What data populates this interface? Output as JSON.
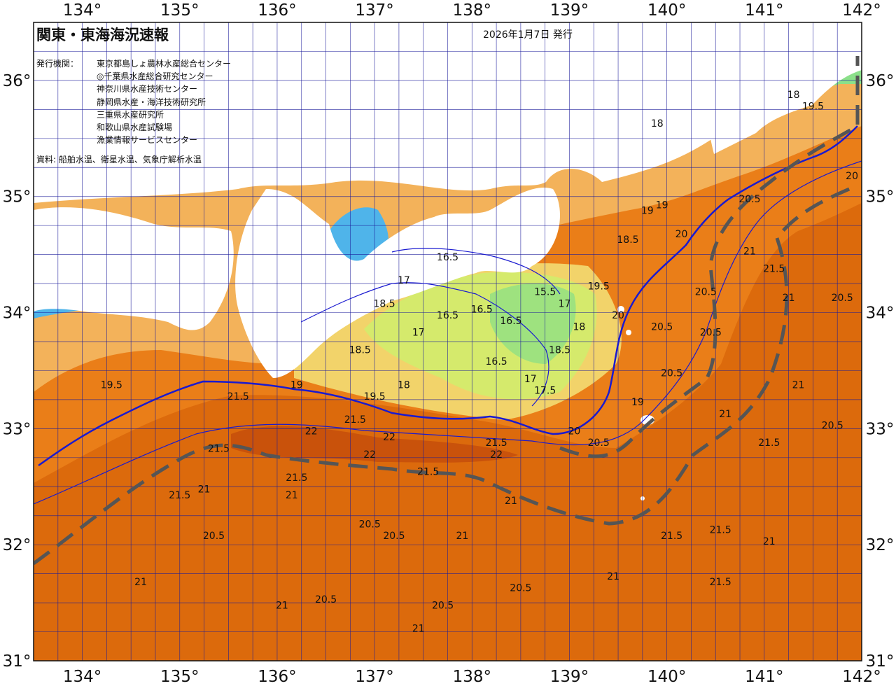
{
  "title": "関東・東海海況速報",
  "issue_date": "2026年1月7日 発行",
  "issuers_label": "発行機関：",
  "issuers": [
    "東京都島しょ農林水産総合センター",
    "◎千葉県水産総合研究センター",
    "神奈川県水産技術センター",
    "静岡県水産・海洋技術研究所",
    "三重県水産研究所",
    "和歌山県水産試験場",
    "漁業情報サービスセンター"
  ],
  "source": "資料: 船舶水温、衛星水温、気象庁解析水温",
  "longitude_labels": [
    "134°",
    "135°",
    "136°",
    "137°",
    "138°",
    "139°",
    "140°",
    "141°",
    "142°"
  ],
  "latitude_labels": [
    "36°",
    "35°",
    "34°",
    "33°",
    "32°",
    "31°"
  ],
  "extent": {
    "lon_min": 133.5,
    "lon_max": 142.0,
    "lat_min": 31.0,
    "lat_max": 36.5
  },
  "colors": {
    "land": "#ffffff",
    "sst_15": "#3fa7e8",
    "sst_16": "#8be08a",
    "sst_17": "#cfe868",
    "sst_18": "#f2d36a",
    "sst_19": "#f2a848",
    "sst_20": "#ef8a1e",
    "sst_21": "#e06a0a",
    "sst_22": "#c8500a",
    "isotherm": "#1a1ad0",
    "kuroshio_axis": "#555555",
    "grid": "#1a1a9a"
  },
  "contour_labels": [
    {
      "text": "16.5",
      "lon": 137.75,
      "lat": 34.45
    },
    {
      "text": "16.5",
      "lon": 137.75,
      "lat": 33.95
    },
    {
      "text": "16.5",
      "lon": 138.1,
      "lat": 34.0
    },
    {
      "text": "16.5",
      "lon": 138.4,
      "lat": 33.9
    },
    {
      "text": "16.5",
      "lon": 138.25,
      "lat": 33.55
    },
    {
      "text": "15.5",
      "lon": 138.75,
      "lat": 34.15
    },
    {
      "text": "17",
      "lon": 138.95,
      "lat": 34.05
    },
    {
      "text": "17",
      "lon": 137.3,
      "lat": 34.25
    },
    {
      "text": "17",
      "lon": 137.45,
      "lat": 33.8
    },
    {
      "text": "17",
      "lon": 138.6,
      "lat": 33.4
    },
    {
      "text": "17.5",
      "lon": 138.75,
      "lat": 33.3
    },
    {
      "text": "18",
      "lon": 137.3,
      "lat": 33.35
    },
    {
      "text": "18",
      "lon": 139.1,
      "lat": 33.85
    },
    {
      "text": "18",
      "lon": 139.9,
      "lat": 35.6
    },
    {
      "text": "18",
      "lon": 141.3,
      "lat": 35.85
    },
    {
      "text": "18.5",
      "lon": 136.85,
      "lat": 33.65
    },
    {
      "text": "18.5",
      "lon": 137.1,
      "lat": 34.05
    },
    {
      "text": "18.5",
      "lon": 138.9,
      "lat": 33.65
    },
    {
      "text": "18.5",
      "lon": 139.6,
      "lat": 34.6
    },
    {
      "text": "19",
      "lon": 136.2,
      "lat": 33.35
    },
    {
      "text": "19",
      "lon": 139.7,
      "lat": 33.2
    },
    {
      "text": "19",
      "lon": 139.8,
      "lat": 34.85
    },
    {
      "text": "19",
      "lon": 139.95,
      "lat": 34.9
    },
    {
      "text": "19.5",
      "lon": 137.0,
      "lat": 33.25
    },
    {
      "text": "19.5",
      "lon": 139.3,
      "lat": 34.2
    },
    {
      "text": "19.5",
      "lon": 134.3,
      "lat": 33.35
    },
    {
      "text": "19.5",
      "lon": 141.5,
      "lat": 35.75
    },
    {
      "text": "20",
      "lon": 139.5,
      "lat": 33.95
    },
    {
      "text": "20",
      "lon": 140.15,
      "lat": 34.65
    },
    {
      "text": "20",
      "lon": 139.05,
      "lat": 32.95
    },
    {
      "text": "20",
      "lon": 141.9,
      "lat": 35.15
    },
    {
      "text": "20.5",
      "lon": 139.95,
      "lat": 33.85
    },
    {
      "text": "20.5",
      "lon": 140.45,
      "lat": 33.8
    },
    {
      "text": "20.5",
      "lon": 140.05,
      "lat": 33.45
    },
    {
      "text": "20.5",
      "lon": 140.4,
      "lat": 34.15
    },
    {
      "text": "20.5",
      "lon": 139.3,
      "lat": 32.85
    },
    {
      "text": "20.5",
      "lon": 140.85,
      "lat": 34.95
    },
    {
      "text": "20.5",
      "lon": 141.7,
      "lat": 33.0
    },
    {
      "text": "20.5",
      "lon": 141.8,
      "lat": 34.1
    },
    {
      "text": "20.5",
      "lon": 136.95,
      "lat": 32.15
    },
    {
      "text": "20.5",
      "lon": 137.2,
      "lat": 32.05
    },
    {
      "text": "20.5",
      "lon": 135.35,
      "lat": 32.05
    },
    {
      "text": "20.5",
      "lon": 138.5,
      "lat": 31.6
    },
    {
      "text": "20.5",
      "lon": 136.5,
      "lat": 31.5
    },
    {
      "text": "20.5",
      "lon": 137.7,
      "lat": 31.45
    },
    {
      "text": "21",
      "lon": 134.6,
      "lat": 31.65
    },
    {
      "text": "21",
      "lon": 135.25,
      "lat": 32.45
    },
    {
      "text": "21",
      "lon": 136.15,
      "lat": 32.4
    },
    {
      "text": "21",
      "lon": 137.9,
      "lat": 32.05
    },
    {
      "text": "21",
      "lon": 138.4,
      "lat": 32.35
    },
    {
      "text": "21",
      "lon": 139.45,
      "lat": 31.7
    },
    {
      "text": "21",
      "lon": 140.6,
      "lat": 33.1
    },
    {
      "text": "21",
      "lon": 141.05,
      "lat": 32.0
    },
    {
      "text": "21",
      "lon": 141.35,
      "lat": 33.35
    },
    {
      "text": "21",
      "lon": 140.85,
      "lat": 34.5
    },
    {
      "text": "21",
      "lon": 141.25,
      "lat": 34.1
    },
    {
      "text": "21",
      "lon": 136.05,
      "lat": 31.45
    },
    {
      "text": "21",
      "lon": 137.45,
      "lat": 31.25
    },
    {
      "text": "21.5",
      "lon": 135.6,
      "lat": 33.25
    },
    {
      "text": "21.5",
      "lon": 136.8,
      "lat": 33.05
    },
    {
      "text": "21.5",
      "lon": 135.4,
      "lat": 32.8
    },
    {
      "text": "21.5",
      "lon": 136.2,
      "lat": 32.55
    },
    {
      "text": "21.5",
      "lon": 137.55,
      "lat": 32.6
    },
    {
      "text": "21.5",
      "lon": 138.25,
      "lat": 32.85
    },
    {
      "text": "21.5",
      "lon": 140.05,
      "lat": 32.05
    },
    {
      "text": "21.5",
      "lon": 140.55,
      "lat": 32.1
    },
    {
      "text": "21.5",
      "lon": 141.05,
      "lat": 32.85
    },
    {
      "text": "21.5",
      "lon": 141.1,
      "lat": 34.35
    },
    {
      "text": "21.5",
      "lon": 140.55,
      "lat": 31.65
    },
    {
      "text": "21.5",
      "lon": 135.0,
      "lat": 32.4
    },
    {
      "text": "22",
      "lon": 136.35,
      "lat": 32.95
    },
    {
      "text": "22",
      "lon": 137.15,
      "lat": 32.9
    },
    {
      "text": "22",
      "lon": 136.95,
      "lat": 32.75
    },
    {
      "text": "22",
      "lon": 138.25,
      "lat": 32.75
    }
  ]
}
